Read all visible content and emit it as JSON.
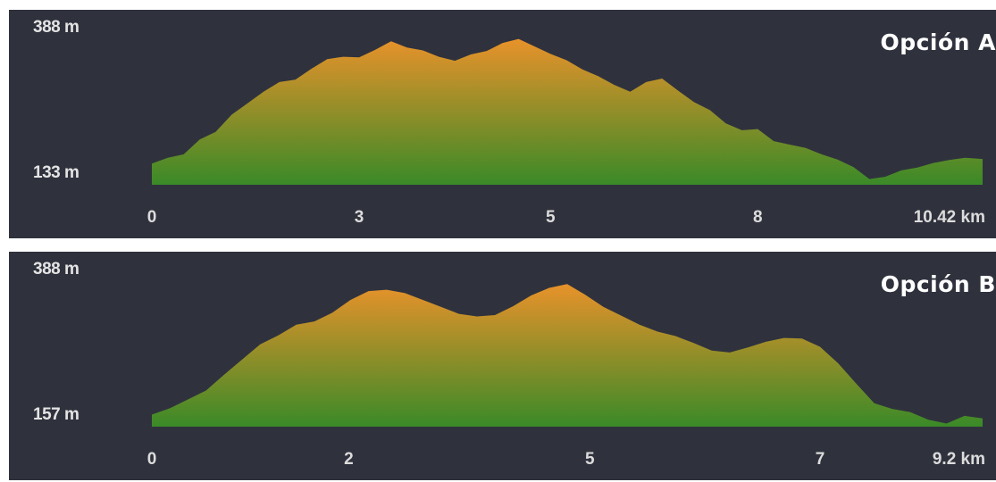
{
  "chart_data": [
    {
      "type": "area",
      "title": "Opción A",
      "y_max_label": "388 m",
      "y_min_label": "133 m",
      "ylim": [
        133,
        388
      ],
      "xlim": [
        0,
        10.42
      ],
      "x_tick_labels": [
        "0",
        "3",
        "5",
        "8",
        "10.42 km"
      ],
      "x_tick_values": [
        0,
        2.6,
        5,
        7.6,
        9.9
      ],
      "fill_top_color": "#e8922a",
      "fill_bottom_color": "#3a8a28",
      "x": [
        0,
        0.2,
        0.4,
        0.6,
        0.8,
        1.0,
        1.2,
        1.4,
        1.6,
        1.8,
        2.0,
        2.2,
        2.4,
        2.6,
        2.8,
        3.0,
        3.2,
        3.4,
        3.6,
        3.8,
        4.0,
        4.2,
        4.4,
        4.6,
        4.8,
        5.0,
        5.2,
        5.4,
        5.6,
        5.8,
        6.0,
        6.2,
        6.4,
        6.6,
        6.8,
        7.0,
        7.2,
        7.4,
        7.6,
        7.8,
        8.0,
        8.2,
        8.4,
        8.6,
        8.8,
        9.0,
        9.2,
        9.4,
        9.6,
        9.8,
        10.0,
        10.2,
        10.42
      ],
      "elevation": [
        170,
        180,
        186,
        212,
        225,
        255,
        275,
        295,
        312,
        316,
        335,
        352,
        356,
        355,
        368,
        383,
        372,
        367,
        356,
        349,
        360,
        366,
        380,
        387,
        374,
        361,
        350,
        334,
        322,
        307,
        295,
        312,
        318,
        297,
        277,
        263,
        240,
        228,
        230,
        209,
        203,
        197,
        186,
        177,
        164,
        143,
        147,
        158,
        163,
        171,
        176,
        180,
        178
      ]
    },
    {
      "type": "area",
      "title": "Opción B",
      "y_max_label": "388 m",
      "y_min_label": "157 m",
      "ylim": [
        157,
        388
      ],
      "xlim": [
        0,
        9.2
      ],
      "x_tick_labels": [
        "0",
        "2",
        "5",
        "7",
        "9.2 km"
      ],
      "x_tick_values": [
        0,
        2.18,
        4.85,
        7.4,
        8.8
      ],
      "fill_top_color": "#e8922a",
      "fill_bottom_color": "#3a8a28",
      "x": [
        0,
        0.2,
        0.4,
        0.6,
        0.8,
        1.0,
        1.2,
        1.4,
        1.6,
        1.8,
        2.0,
        2.2,
        2.4,
        2.6,
        2.8,
        3.0,
        3.2,
        3.4,
        3.6,
        3.8,
        4.0,
        4.2,
        4.4,
        4.6,
        4.8,
        5.0,
        5.2,
        5.4,
        5.6,
        5.8,
        6.0,
        6.2,
        6.4,
        6.6,
        6.8,
        7.0,
        7.2,
        7.4,
        7.6,
        7.8,
        8.0,
        8.2,
        8.4,
        8.6,
        8.8,
        9.0,
        9.2
      ],
      "elevation": [
        176,
        186,
        200,
        214,
        239,
        263,
        287,
        301,
        318,
        323,
        337,
        357,
        371,
        373,
        368,
        357,
        346,
        335,
        331,
        333,
        347,
        364,
        376,
        382,
        365,
        346,
        332,
        318,
        307,
        300,
        289,
        277,
        274,
        282,
        291,
        297,
        296,
        283,
        257,
        225,
        194,
        185,
        180,
        168,
        162,
        174,
        170
      ]
    }
  ]
}
